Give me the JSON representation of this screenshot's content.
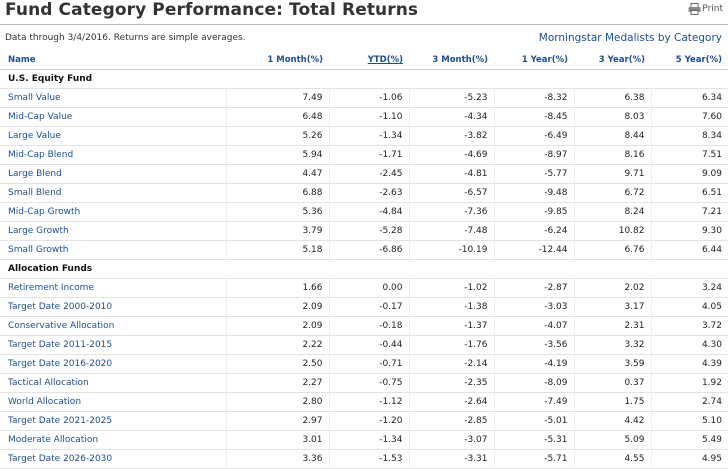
{
  "header": {
    "title": "Fund Category Performance: Total Returns",
    "print_label": "Print",
    "subline": "Data through 3/4/2016. Returns are simple averages.",
    "medalists_link": "Morningstar Medalists by Category"
  },
  "table": {
    "columns": [
      "Name",
      "1 Month(%)",
      "YTD(%)",
      "3 Month(%)",
      "1 Year(%)",
      "3 Year(%)",
      "5 Year(%)"
    ],
    "groups": [
      {
        "label": "U.S. Equity Fund",
        "rows": [
          {
            "name": "Small Value",
            "m1": "7.49",
            "ytd": "-1.06",
            "m3": "-5.23",
            "y1": "-8.32",
            "y3": "6.38",
            "y5": "6.34"
          },
          {
            "name": "Mid-Cap Value",
            "m1": "6.48",
            "ytd": "-1.10",
            "m3": "-4.34",
            "y1": "-8.45",
            "y3": "8.03",
            "y5": "7.60"
          },
          {
            "name": "Large Value",
            "m1": "5.26",
            "ytd": "-1.34",
            "m3": "-3.82",
            "y1": "-6.49",
            "y3": "8.44",
            "y5": "8.34"
          },
          {
            "name": "Mid-Cap Blend",
            "m1": "5.94",
            "ytd": "-1.71",
            "m3": "-4.69",
            "y1": "-8.97",
            "y3": "8.16",
            "y5": "7.51"
          },
          {
            "name": "Large Blend",
            "m1": "4.47",
            "ytd": "-2.45",
            "m3": "-4.81",
            "y1": "-5.77",
            "y3": "9.71",
            "y5": "9.09"
          },
          {
            "name": "Small Blend",
            "m1": "6.88",
            "ytd": "-2.63",
            "m3": "-6.57",
            "y1": "-9.48",
            "y3": "6.72",
            "y5": "6.51"
          },
          {
            "name": "Mid-Cap Growth",
            "m1": "5.36",
            "ytd": "-4.84",
            "m3": "-7.36",
            "y1": "-9.85",
            "y3": "8.24",
            "y5": "7.21"
          },
          {
            "name": "Large Growth",
            "m1": "3.79",
            "ytd": "-5.28",
            "m3": "-7.48",
            "y1": "-6.24",
            "y3": "10.82",
            "y5": "9.30"
          },
          {
            "name": "Small Growth",
            "m1": "5.18",
            "ytd": "-6.86",
            "m3": "-10.19",
            "y1": "-12.44",
            "y3": "6.76",
            "y5": "6.44"
          }
        ]
      },
      {
        "label": "Allocation Funds",
        "rows": [
          {
            "name": "Retirement Income",
            "m1": "1.66",
            "ytd": "0.00",
            "m3": "-1.02",
            "y1": "-2.87",
            "y3": "2.02",
            "y5": "3.24"
          },
          {
            "name": "Target Date 2000-2010",
            "m1": "2.09",
            "ytd": "-0.17",
            "m3": "-1.38",
            "y1": "-3.03",
            "y3": "3.17",
            "y5": "4.05"
          },
          {
            "name": "Conservative Allocation",
            "m1": "2.09",
            "ytd": "-0.18",
            "m3": "-1.37",
            "y1": "-4.07",
            "y3": "2.31",
            "y5": "3.72"
          },
          {
            "name": "Target Date 2011-2015",
            "m1": "2.22",
            "ytd": "-0.44",
            "m3": "-1.76",
            "y1": "-3.56",
            "y3": "3.32",
            "y5": "4.30"
          },
          {
            "name": "Target Date 2016-2020",
            "m1": "2.50",
            "ytd": "-0.71",
            "m3": "-2.14",
            "y1": "-4.19",
            "y3": "3.59",
            "y5": "4.39"
          },
          {
            "name": "Tactical Allocation",
            "m1": "2.27",
            "ytd": "-0.75",
            "m3": "-2.35",
            "y1": "-8.09",
            "y3": "0.37",
            "y5": "1.92"
          },
          {
            "name": "World Allocation",
            "m1": "2.80",
            "ytd": "-1.12",
            "m3": "-2.64",
            "y1": "-7.49",
            "y3": "1.75",
            "y5": "2.74"
          },
          {
            "name": "Target Date 2021-2025",
            "m1": "2.97",
            "ytd": "-1.20",
            "m3": "-2.85",
            "y1": "-5.01",
            "y3": "4.42",
            "y5": "5.10"
          },
          {
            "name": "Moderate Allocation",
            "m1": "3.01",
            "ytd": "-1.34",
            "m3": "-3.07",
            "y1": "-5.31",
            "y3": "5.09",
            "y5": "5.49"
          },
          {
            "name": "Target Date 2026-2030",
            "m1": "3.36",
            "ytd": "-1.53",
            "m3": "-3.31",
            "y1": "-5.71",
            "y3": "4.55",
            "y5": "4.95"
          }
        ]
      }
    ]
  }
}
